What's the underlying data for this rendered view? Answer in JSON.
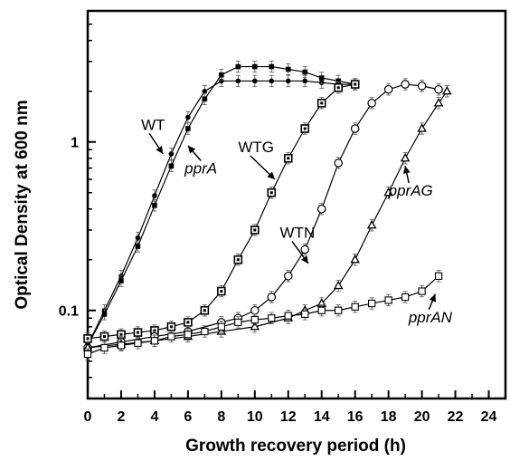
{
  "chart_data": {
    "type": "line",
    "xlabel": "Growth recovery period (h)",
    "ylabel": "Optical Density at 600 nm",
    "xlim": [
      0,
      25
    ],
    "ylim": [
      0.03,
      6
    ],
    "yscale": "log",
    "x_ticks": [
      0,
      2,
      4,
      6,
      8,
      10,
      12,
      14,
      16,
      18,
      20,
      22,
      24
    ],
    "y_ticks": [
      {
        "value": 0.1,
        "label": "0.1"
      },
      {
        "value": 1,
        "label": "1"
      }
    ],
    "grid": false,
    "legend": "none",
    "series": [
      {
        "marker": "filled-circle",
        "x": [
          0,
          1,
          2,
          3,
          4,
          5,
          6,
          7,
          8,
          9,
          10,
          11,
          12,
          13,
          14,
          15,
          16
        ],
        "y": [
          0.062,
          0.1,
          0.16,
          0.27,
          0.48,
          0.85,
          1.4,
          2.0,
          2.3,
          2.3,
          2.3,
          2.3,
          2.3,
          2.3,
          2.25,
          2.2,
          2.2
        ]
      },
      {
        "marker": "filled-square",
        "x": [
          0,
          1,
          2,
          3,
          4,
          5,
          6,
          7,
          8,
          9,
          10,
          11,
          12,
          13,
          14,
          15,
          16
        ],
        "y": [
          0.062,
          0.095,
          0.15,
          0.24,
          0.42,
          0.72,
          1.2,
          1.8,
          2.5,
          2.8,
          2.8,
          2.8,
          2.7,
          2.6,
          2.4,
          2.3,
          2.2
        ]
      },
      {
        "marker": "open-square-dot",
        "x": [
          0,
          1,
          2,
          3,
          4,
          5,
          6,
          7,
          8,
          9,
          10,
          11,
          12,
          13,
          14,
          15,
          16
        ],
        "y": [
          0.068,
          0.07,
          0.072,
          0.074,
          0.076,
          0.08,
          0.085,
          0.1,
          0.13,
          0.2,
          0.3,
          0.5,
          0.8,
          1.2,
          1.7,
          2.1,
          2.2
        ]
      },
      {
        "marker": "open-circle",
        "x": [
          0,
          2,
          4,
          6,
          8,
          9,
          10,
          11,
          12,
          13,
          14,
          15,
          16,
          17,
          18,
          19,
          20,
          21
        ],
        "y": [
          0.06,
          0.065,
          0.07,
          0.075,
          0.085,
          0.09,
          0.1,
          0.12,
          0.16,
          0.23,
          0.4,
          0.75,
          1.2,
          1.7,
          2.05,
          2.2,
          2.15,
          2.05
        ]
      },
      {
        "marker": "open-triangle",
        "x": [
          0,
          2,
          4,
          6,
          8,
          10,
          12,
          13,
          14,
          15,
          16,
          17,
          18,
          19,
          20,
          21,
          21.5
        ],
        "y": [
          0.06,
          0.063,
          0.066,
          0.07,
          0.075,
          0.08,
          0.09,
          0.1,
          0.11,
          0.14,
          0.2,
          0.32,
          0.5,
          0.8,
          1.2,
          1.7,
          2.0
        ]
      },
      {
        "marker": "open-square",
        "x": [
          0,
          1,
          2,
          3,
          4,
          5,
          6,
          7,
          8,
          9,
          10,
          11,
          12,
          13,
          14,
          15,
          16,
          17,
          18,
          19,
          20,
          21
        ],
        "y": [
          0.055,
          0.06,
          0.062,
          0.064,
          0.066,
          0.07,
          0.072,
          0.075,
          0.08,
          0.085,
          0.088,
          0.09,
          0.093,
          0.095,
          0.1,
          0.1,
          0.105,
          0.11,
          0.115,
          0.12,
          0.13,
          0.16
        ]
      }
    ],
    "annotations": [
      {
        "text": "WT",
        "italic": false,
        "x": 3.2,
        "y": 1.18,
        "arrow_to": [
          4.5,
          0.85
        ]
      },
      {
        "text": "pprA",
        "italic": true,
        "x": 5.8,
        "y": 0.65,
        "arrow_to": [
          6.0,
          0.95
        ]
      },
      {
        "text": "WTG",
        "italic": false,
        "x": 9.0,
        "y": 0.87,
        "arrow_to": [
          11.2,
          0.6
        ]
      },
      {
        "text": "WTN",
        "italic": false,
        "x": 11.5,
        "y": 0.27,
        "arrow_to": [
          13.2,
          0.19
        ]
      },
      {
        "text": "pprAG",
        "italic": true,
        "x": 18.0,
        "y": 0.48,
        "arrow_to": [
          19.0,
          0.72
        ]
      },
      {
        "text": "pprAN",
        "italic": true,
        "x": 19.2,
        "y": 0.085,
        "arrow_to": [
          20.8,
          0.125
        ]
      }
    ]
  }
}
